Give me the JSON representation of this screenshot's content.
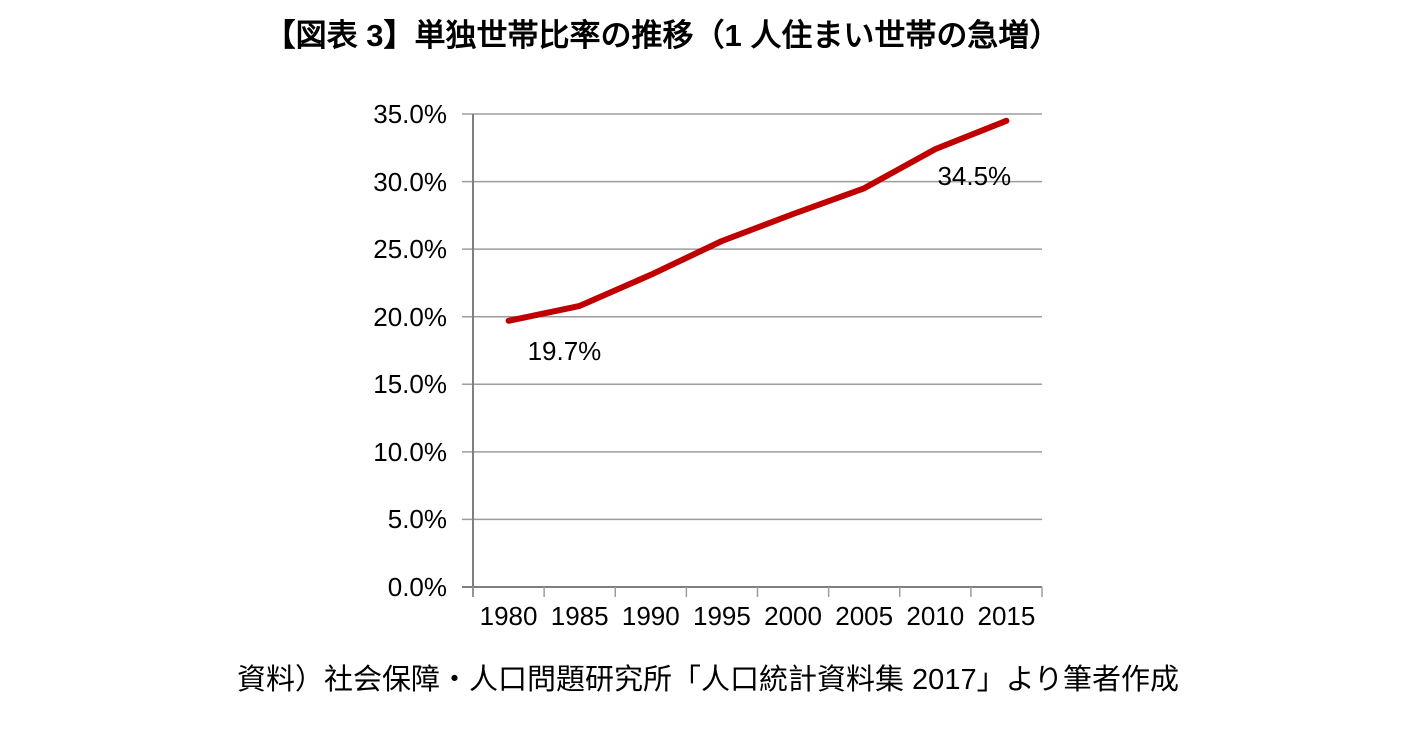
{
  "page": {
    "title": "【図表 3】単独世帯比率の推移（1 人住まい世帯の急増）",
    "source_note": "資料）社会保障・人口問題研究所「人口統計資料集 2017」より筆者作成"
  },
  "chart_data": {
    "type": "line",
    "title": "【図表 3】単独世帯比率の推移（1 人住まい世帯の急増）",
    "categories": [
      "1980",
      "1985",
      "1990",
      "1995",
      "2000",
      "2005",
      "2010",
      "2015"
    ],
    "series": [
      {
        "name": "単独世帯比率",
        "values": [
          19.7,
          20.8,
          23.1,
          25.6,
          27.6,
          29.5,
          32.4,
          34.5
        ]
      }
    ],
    "xlabel": "",
    "ylabel": "",
    "ylim": [
      0,
      35
    ],
    "ytick_step": 5,
    "ytick_decimals": 1,
    "ytick_suffix": "%",
    "grid": true,
    "legend": false,
    "annotations": [
      {
        "text": "19.7%",
        "point_index": 0,
        "position": "below-right"
      },
      {
        "text": "34.5%",
        "point_index": 7,
        "position": "below-left"
      }
    ],
    "colors": {
      "line": "#c00000",
      "grid": "#9d9d9d",
      "axis": "#7f7f7f",
      "text": "#000000"
    }
  }
}
